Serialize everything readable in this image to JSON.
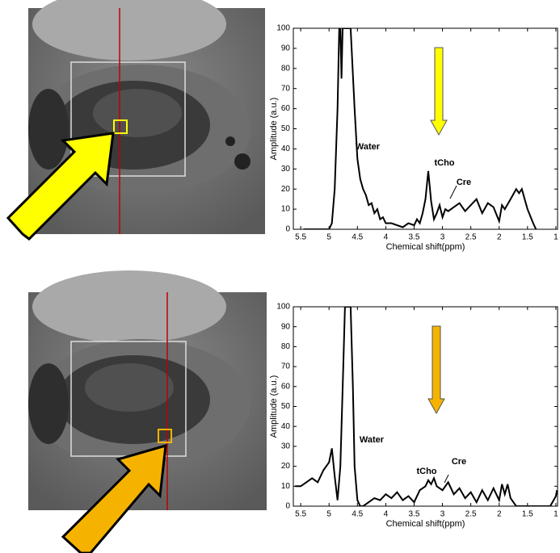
{
  "chart_data": [
    {
      "type": "line",
      "xlabel": "Chemical shift(ppm)",
      "ylabel": "Amplitude (a.u.)",
      "xlim": [
        5.63,
        0.97
      ],
      "xticks": [
        5.5,
        5,
        4.5,
        4,
        3.5,
        3,
        2.5,
        2,
        1.5,
        1
      ],
      "ylim": [
        0,
        100
      ],
      "yticks": [
        0,
        10,
        20,
        30,
        40,
        50,
        60,
        70,
        80,
        90,
        100
      ],
      "color": "#000000",
      "arrow_color": "#ffff00",
      "annotations": [
        "Water",
        "tCho",
        "Cre"
      ],
      "x": [
        5.45,
        5.3,
        5.0,
        4.95,
        4.9,
        4.85,
        4.82,
        4.8,
        4.78,
        4.76,
        4.62,
        4.55,
        4.5,
        4.45,
        4.4,
        4.35,
        4.3,
        4.25,
        4.2,
        4.15,
        4.1,
        4.05,
        4.0,
        3.9,
        3.8,
        3.7,
        3.6,
        3.5,
        3.45,
        3.4,
        3.35,
        3.3,
        3.25,
        3.2,
        3.15,
        3.1,
        3.05,
        3.0,
        2.95,
        2.9,
        2.8,
        2.7,
        2.6,
        2.5,
        2.4,
        2.3,
        2.2,
        2.1,
        2.0,
        1.95,
        1.9,
        1.8,
        1.7,
        1.65,
        1.6,
        1.55,
        1.5,
        1.4,
        1.35
      ],
      "values": [
        0,
        0,
        0,
        3,
        20,
        60,
        100,
        100,
        75,
        100,
        100,
        60,
        35,
        25,
        20,
        17,
        12,
        13,
        8,
        10,
        5,
        6,
        3,
        3,
        2,
        1,
        3,
        2,
        5,
        3,
        8,
        15,
        29,
        14,
        5,
        8,
        12,
        6,
        10,
        9,
        11,
        13,
        9,
        12,
        15,
        8,
        13,
        11,
        4,
        12,
        10,
        15,
        20,
        18,
        20,
        15,
        10,
        3,
        0
      ]
    },
    {
      "type": "line",
      "xlabel": "Chemical shift(ppm)",
      "ylabel": "Amplitude (a.u.)",
      "xlim": [
        5.63,
        0.97
      ],
      "xticks": [
        5.5,
        5,
        4.5,
        4,
        3.5,
        3,
        2.5,
        2,
        1.5,
        1
      ],
      "ylim": [
        0,
        100
      ],
      "yticks": [
        0,
        10,
        20,
        30,
        40,
        50,
        60,
        70,
        80,
        90,
        100
      ],
      "color": "#000000",
      "arrow_color": "#f5b300",
      "annotations": [
        "Water",
        "Cre",
        "tCho"
      ],
      "x": [
        5.6,
        5.5,
        5.4,
        5.3,
        5.2,
        5.1,
        5.0,
        4.95,
        4.9,
        4.85,
        4.8,
        4.75,
        4.72,
        4.62,
        4.58,
        4.55,
        4.5,
        4.45,
        4.4,
        4.3,
        4.2,
        4.1,
        4.0,
        3.9,
        3.8,
        3.7,
        3.6,
        3.5,
        3.4,
        3.3,
        3.25,
        3.2,
        3.15,
        3.1,
        3.0,
        2.9,
        2.8,
        2.7,
        2.6,
        2.5,
        2.4,
        2.3,
        2.2,
        2.1,
        2.0,
        1.95,
        1.9,
        1.85,
        1.8,
        1.7,
        1.5,
        1.4,
        1.3,
        1.1,
        1.0,
        0.98
      ],
      "values": [
        10,
        10,
        12,
        14,
        12,
        18,
        22,
        29,
        15,
        3,
        20,
        70,
        100,
        100,
        60,
        20,
        3,
        0,
        0,
        2,
        4,
        3,
        6,
        4,
        7,
        3,
        5,
        2,
        8,
        10,
        13,
        11,
        14,
        10,
        8,
        12,
        6,
        9,
        4,
        7,
        2,
        8,
        3,
        9,
        3,
        11,
        6,
        11,
        4,
        0,
        0,
        0,
        0,
        0,
        5,
        8
      ]
    }
  ]
}
